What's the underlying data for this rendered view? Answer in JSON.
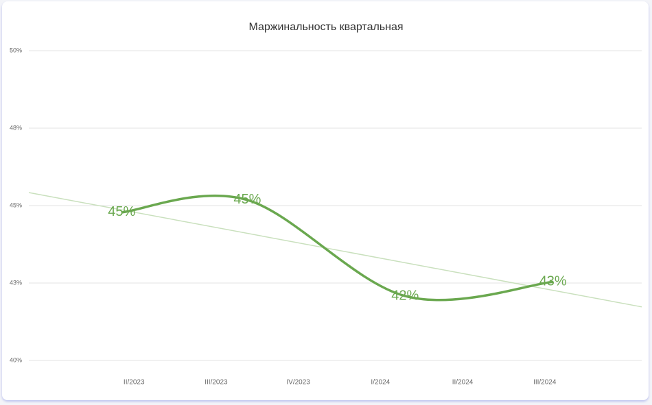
{
  "chart_data": {
    "type": "line",
    "title": "Маржинальность квартальная",
    "categories": [
      "II/2023",
      "III/2023",
      "IV/2023",
      "I/2024",
      "II/2024",
      "III/2024"
    ],
    "x": [
      -0.15,
      1.38,
      3.3,
      5.1
    ],
    "xlim": [
      -1.28,
      6.18
    ],
    "series": [
      {
        "color": "#6aa84f",
        "values": [
          44.78,
          45.18,
          42.08,
          42.54
        ],
        "value_labels": [
          "45%",
          "45%",
          "42%",
          "43%"
        ]
      }
    ],
    "trendline": {
      "color": "#c9e0bd",
      "values": [
        45.42,
        41.73
      ]
    },
    "ylim": [
      40,
      50
    ],
    "yticks": [
      {
        "value": 40,
        "label": "40%"
      },
      {
        "value": 42.5,
        "label": "43%"
      },
      {
        "value": 45,
        "label": "45%"
      },
      {
        "value": 47.5,
        "label": "48%"
      },
      {
        "value": 50,
        "label": "50%"
      }
    ],
    "grid": true
  }
}
